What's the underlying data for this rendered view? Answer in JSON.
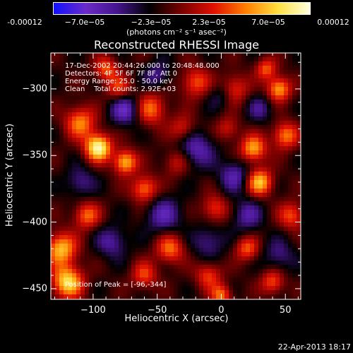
{
  "colorbar": {
    "ticks": [
      "-0.00012",
      "−7.0e−05",
      "−2.3e−05",
      "2.3e−05",
      "7.0e−05",
      "0.00012"
    ],
    "unit": "(photons cm⁻² s⁻¹ asec⁻²)"
  },
  "info": {
    "time_range": "17-Dec-2002 20:44:26.000 to 20:48:48.000",
    "detectors": "Detectors: 4F 5F 6F 7F 8F, Att 0",
    "energy": "Energy Range: 25.0 - 50.0 keV",
    "clean": "Clean    Total counts: 2.92E+03",
    "peak": "Position of Peak = [-96,-344]"
  },
  "footer": {
    "date": "22-Apr-2013 18:17"
  },
  "chart_data": {
    "type": "heatmap",
    "title": "Reconstructed RHESSI Image",
    "xlabel": "Heliocentric X (arcsec)",
    "ylabel": "Heliocentric Y (arcsec)",
    "xlim": [
      -133,
      62
    ],
    "ylim": [
      -458,
      -273
    ],
    "x_ticks": [
      -100,
      -50,
      0,
      50
    ],
    "y_ticks": [
      -300,
      -350,
      -400,
      -450
    ],
    "tick_labels_x": [
      "−100",
      "−50",
      "0",
      "50"
    ],
    "tick_labels_y": [
      "−300",
      "−350",
      "−400",
      "−450"
    ],
    "zlim": [
      -0.00012,
      0.00012
    ],
    "colormap": [
      "#1010ff",
      "#6a2cc8",
      "#44148c",
      "#000000",
      "#7a0000",
      "#e01000",
      "#ff8000",
      "#ffe040",
      "#ffffe0"
    ],
    "peak": {
      "x": -96,
      "y": -344
    }
  }
}
